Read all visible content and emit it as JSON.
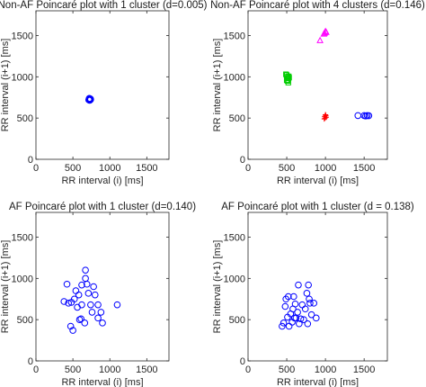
{
  "chart_data": [
    {
      "type": "scatter",
      "title": "Non-AF Poincaré plot with 1 cluster (d=0.005)",
      "xlabel": "RR interval (i) [ms]",
      "ylabel": "RR interval (i+1) [ms]",
      "xlim": [
        0,
        1800
      ],
      "ylim": [
        0,
        1800
      ],
      "xticks": [
        "0",
        "500",
        "1000",
        "1500"
      ],
      "yticks": [
        "0",
        "500",
        "1000",
        "1500"
      ],
      "grid": false,
      "series": [
        {
          "marker": "circle",
          "color": "#0000ff",
          "points": [
            [
              720,
              720
            ],
            [
              725,
              730
            ],
            [
              730,
              722
            ],
            [
              735,
              728
            ],
            [
              728,
              735
            ],
            [
              718,
              726
            ],
            [
              732,
              718
            ],
            [
              740,
              725
            ],
            [
              722,
              738
            ],
            [
              726,
              715
            ],
            [
              738,
              732
            ],
            [
              715,
              720
            ]
          ]
        }
      ]
    },
    {
      "type": "scatter",
      "title": "Non-AF Poincaré plot with 4 clusters (d=0.146)",
      "xlabel": "RR interval (i) [ms]",
      "ylabel": "RR interval (i+1) [ms]",
      "xlim": [
        0,
        1800
      ],
      "ylim": [
        0,
        1800
      ],
      "xticks": [
        "0",
        "500",
        "1000",
        "1500"
      ],
      "yticks": [
        "0",
        "500",
        "1000",
        "1500"
      ],
      "grid": false,
      "series": [
        {
          "marker": "square",
          "color": "#00cc00",
          "points": [
            [
              490,
              1030
            ],
            [
              500,
              1020
            ],
            [
              510,
              1000
            ],
            [
              520,
              980
            ],
            [
              510,
              950
            ],
            [
              520,
              930
            ],
            [
              530,
              990
            ],
            [
              500,
              960
            ],
            [
              525,
              1005
            ]
          ]
        },
        {
          "marker": "triangle",
          "color": "#ff00ff",
          "points": [
            [
              930,
              1440
            ],
            [
              980,
              1520
            ],
            [
              1000,
              1550
            ],
            [
              990,
              1530
            ],
            [
              1010,
              1540
            ]
          ]
        },
        {
          "marker": "plus",
          "color": "#ff0000",
          "points": [
            [
              990,
              520
            ],
            [
              1000,
              540
            ],
            [
              1010,
              510
            ],
            [
              995,
              500
            ],
            [
              1005,
              530
            ],
            [
              985,
              490
            ]
          ]
        },
        {
          "marker": "circle",
          "color": "#0000ff",
          "points": [
            [
              1420,
              530
            ],
            [
              1500,
              530
            ],
            [
              1520,
              525
            ],
            [
              1540,
              530
            ],
            [
              1560,
              528
            ]
          ]
        }
      ]
    },
    {
      "type": "scatter",
      "title": "AF Poincaré plot with 1 cluster (d=0.140)",
      "xlabel": "RR interval (i) [ms]",
      "ylabel": "RR interval (i+1) [ms]",
      "xlim": [
        0,
        1800
      ],
      "ylim": [
        0,
        1800
      ],
      "xticks": [
        "0",
        "500",
        "1000",
        "1500"
      ],
      "yticks": [
        "0",
        "500",
        "1000",
        "1500"
      ],
      "grid": false,
      "series": [
        {
          "marker": "circle",
          "color": "#0000ff",
          "points": [
            [
              380,
              720
            ],
            [
              420,
              930
            ],
            [
              440,
              700
            ],
            [
              480,
              710
            ],
            [
              470,
              420
            ],
            [
              500,
              370
            ],
            [
              520,
              750
            ],
            [
              540,
              850
            ],
            [
              560,
              650
            ],
            [
              580,
              800
            ],
            [
              590,
              500
            ],
            [
              610,
              510
            ],
            [
              620,
              920
            ],
            [
              620,
              680
            ],
            [
              660,
              460
            ],
            [
              670,
              1000
            ],
            [
              670,
              1100
            ],
            [
              690,
              930
            ],
            [
              710,
              820
            ],
            [
              740,
              680
            ],
            [
              760,
              590
            ],
            [
              780,
              900
            ],
            [
              800,
              800
            ],
            [
              840,
              680
            ],
            [
              840,
              520
            ],
            [
              880,
              590
            ],
            [
              900,
              460
            ],
            [
              1100,
              680
            ]
          ]
        }
      ]
    },
    {
      "type": "scatter",
      "title": "AF Poincaré plot with 1 cluster (d = 0.138)",
      "xlabel": "RR interval (i) [ms]",
      "ylabel": "RR interval (i+1) [ms]",
      "xlim": [
        0,
        1800
      ],
      "ylim": [
        0,
        1800
      ],
      "xticks": [
        "0",
        "500",
        "1000",
        "1500"
      ],
      "yticks": [
        "0",
        "500",
        "1000",
        "1500"
      ],
      "grid": false,
      "series": [
        {
          "marker": "circle",
          "color": "#0000ff",
          "points": [
            [
              440,
              420
            ],
            [
              460,
              460
            ],
            [
              480,
              660
            ],
            [
              490,
              750
            ],
            [
              510,
              530
            ],
            [
              520,
              780
            ],
            [
              530,
              420
            ],
            [
              550,
              570
            ],
            [
              570,
              470
            ],
            [
              580,
              630
            ],
            [
              590,
              780
            ],
            [
              600,
              520
            ],
            [
              610,
              690
            ],
            [
              620,
              520
            ],
            [
              640,
              590
            ],
            [
              650,
              920
            ],
            [
              660,
              450
            ],
            [
              680,
              510
            ],
            [
              700,
              680
            ],
            [
              720,
              500
            ],
            [
              740,
              630
            ],
            [
              760,
              820
            ],
            [
              770,
              450
            ],
            [
              780,
              920
            ],
            [
              790,
              750
            ],
            [
              800,
              700
            ],
            [
              820,
              560
            ],
            [
              850,
              700
            ],
            [
              880,
              520
            ]
          ]
        }
      ]
    }
  ]
}
